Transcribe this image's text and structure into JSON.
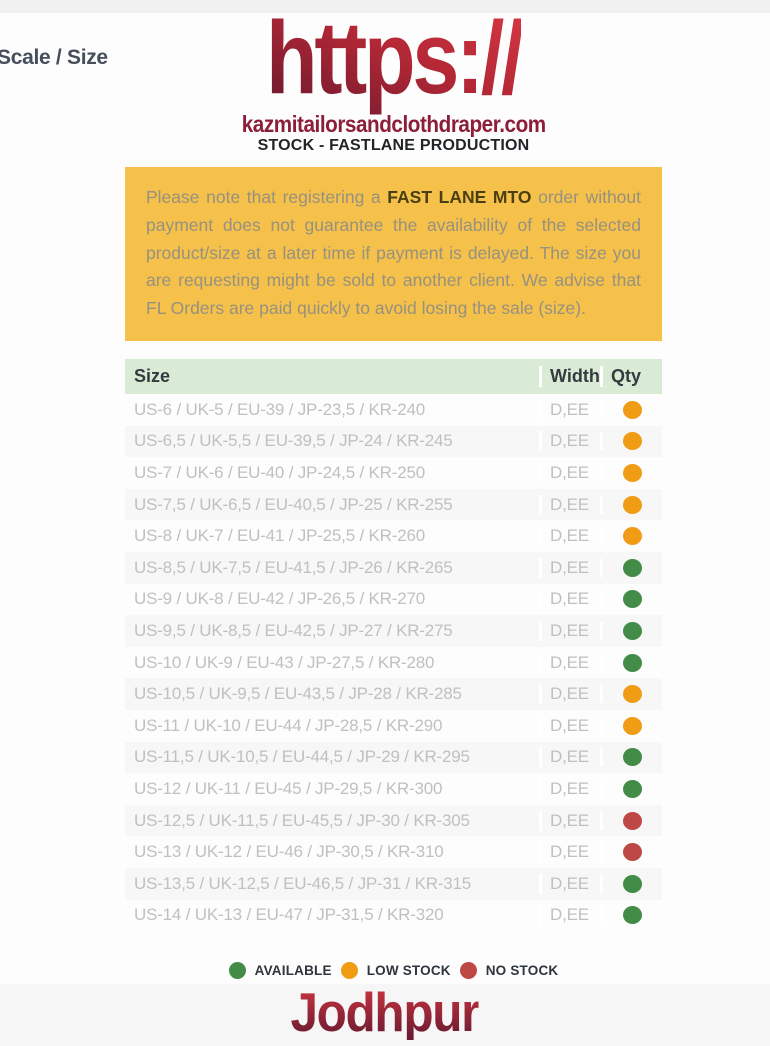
{
  "page": {
    "section_label": "Scale / Size",
    "logo_text": "https://",
    "logo_domain": "kazmitailorsandclothdraper.com",
    "subtitle": "STOCK - FASTLANE PRODUCTION",
    "product_title": "Jodhpur"
  },
  "notice": {
    "text_before": "Please note that registering a ",
    "bold": "FAST LANE MTO",
    "text_after": " order without payment does not guarantee the availability of the selected product/size at a later time if payment is delayed. The size you are requesting might be sold to another client. We advise that FL Orders are paid quickly to avoid losing the sale (size)."
  },
  "table": {
    "headers": [
      "Size",
      "Width",
      "Qty"
    ],
    "rows": [
      {
        "size": "US-6 / UK-5 / EU-39 / JP-23,5 / KR-240",
        "width": "D,EE",
        "stock": "low"
      },
      {
        "size": "US-6,5 / UK-5,5 / EU-39,5 / JP-24 / KR-245",
        "width": "D,EE",
        "stock": "low"
      },
      {
        "size": "US-7 / UK-6 / EU-40 / JP-24,5 / KR-250",
        "width": "D,EE",
        "stock": "low"
      },
      {
        "size": "US-7,5 / UK-6,5 / EU-40,5 / JP-25 / KR-255",
        "width": "D,EE",
        "stock": "low"
      },
      {
        "size": "US-8 / UK-7 / EU-41 / JP-25,5 / KR-260",
        "width": "D,EE",
        "stock": "low"
      },
      {
        "size": "US-8,5 / UK-7,5 / EU-41,5 / JP-26 / KR-265",
        "width": "D,EE",
        "stock": "available"
      },
      {
        "size": "US-9 / UK-8 / EU-42 / JP-26,5 / KR-270",
        "width": "D,EE",
        "stock": "available"
      },
      {
        "size": "US-9,5 / UK-8,5 / EU-42,5 / JP-27 / KR-275",
        "width": "D,EE",
        "stock": "available"
      },
      {
        "size": "US-10 / UK-9 / EU-43 / JP-27,5 / KR-280",
        "width": "D,EE",
        "stock": "available"
      },
      {
        "size": "US-10,5 / UK-9,5 / EU-43,5 / JP-28 / KR-285",
        "width": "D,EE",
        "stock": "low"
      },
      {
        "size": "US-11 / UK-10 / EU-44 / JP-28,5 / KR-290",
        "width": "D,EE",
        "stock": "low"
      },
      {
        "size": "US-11,5 / UK-10,5 / EU-44,5 / JP-29 / KR-295",
        "width": "D,EE",
        "stock": "available"
      },
      {
        "size": "US-12 / UK-11 / EU-45 / JP-29,5 / KR-300",
        "width": "D,EE",
        "stock": "available"
      },
      {
        "size": "US-12,5 / UK-11,5 / EU-45,5 / JP-30 / KR-305",
        "width": "D,EE",
        "stock": "no"
      },
      {
        "size": "US-13 / UK-12 / EU-46 / JP-30,5 / KR-310",
        "width": "D,EE",
        "stock": "no"
      },
      {
        "size": "US-13,5 / UK-12,5 / EU-46,5 / JP-31 / KR-315",
        "width": "D,EE",
        "stock": "available"
      },
      {
        "size": "US-14 / UK-13 / EU-47 / JP-31,5 / KR-320",
        "width": "D,EE",
        "stock": "available"
      }
    ]
  },
  "legend": [
    {
      "label": "AVAILABLE",
      "status": "available"
    },
    {
      "label": "LOW STOCK",
      "status": "low"
    },
    {
      "label": "NO STOCK",
      "status": "no"
    }
  ],
  "colors": {
    "status": {
      "available": "#438c48",
      "low": "#f19c15",
      "no": "#bd4845"
    },
    "accent_maroon": "#8d1e38",
    "notice_bg": "#f5c14b",
    "header_green": "#d9ebd4"
  }
}
